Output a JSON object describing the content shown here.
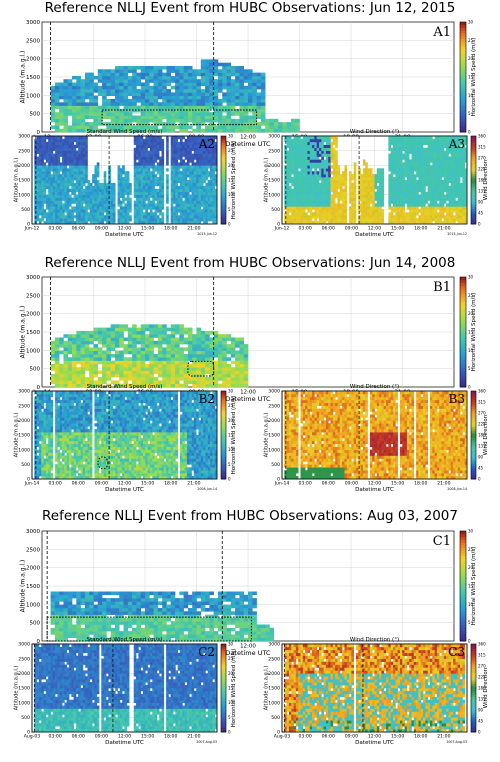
{
  "rows": [
    {
      "title": "Reference NLLJ Event from HUBC Observations: Jun 12, 2015",
      "top": {
        "label": "A1",
        "xlabel": "Datetime UTC",
        "ylabel": "Altitude (m.a.g.l.)",
        "date_stamp": "2015-Jun-12"
      },
      "left": {
        "label": "A2",
        "title": "Standard Wind Speed (m/s)",
        "xlabel": "Datetime UTC",
        "ylabel": "Altitude (m.a.g.l.)",
        "date_stamp": "2015-Jun-12"
      },
      "right": {
        "label": "A3",
        "title": "Wind Direction (°)",
        "xlabel": "Datetime UTC",
        "date_stamp": "2015-Jun-12"
      }
    },
    {
      "title": "Reference NLLJ Event from HUBC Observations: Jun 14, 2008",
      "top": {
        "label": "B1",
        "xlabel": "Datetime UTC",
        "ylabel": "Altitude (m.a.g.l.)",
        "date_stamp": "2008-Jun-14"
      },
      "left": {
        "label": "B2",
        "title": "Standard Wind Speed (m/s)",
        "xlabel": "Datetime UTC",
        "ylabel": "Altitude (m.a.g.l.)",
        "date_stamp": "2008-Jun-14"
      },
      "right": {
        "label": "B3",
        "title": "Wind Direction (°)",
        "xlabel": "Datetime UTC",
        "date_stamp": "2008-Jun-14"
      }
    },
    {
      "title": "Reference NLLJ Event from HUBC Observations: Aug 03, 2007",
      "top": {
        "label": "C1",
        "xlabel": "Datetime UTC",
        "ylabel": "Altitude (m.a.g.l.)",
        "date_stamp": "2007-Aug-03"
      },
      "left": {
        "label": "C2",
        "title": "Standard Wind Speed (m/s)",
        "xlabel": "Datetime UTC",
        "ylabel": "Altitude (m.a.g.l.)",
        "date_stamp": "2007-Aug-03"
      },
      "right": {
        "label": "C3",
        "title": "Wind Direction (°)",
        "xlabel": "Datetime UTC",
        "date_stamp": "2007-Aug-03"
      }
    }
  ],
  "colorbars": {
    "horizontal_speed": {
      "label": "Horizontal Wind Speed (m/s)",
      "ticks": [
        "0",
        "5",
        "10",
        "15",
        "20",
        "25",
        "30"
      ]
    },
    "std_speed": {
      "label": "Horizontal Wind Speed (m/s)",
      "ticks": [
        "0",
        "5",
        "10",
        "15",
        "20",
        "25",
        "30"
      ]
    },
    "direction": {
      "label": "Wind Direction",
      "ticks": [
        "0",
        "45",
        "90",
        "135",
        "180",
        "225",
        "270",
        "315",
        "360"
      ]
    }
  },
  "chart_data": [
    {
      "type": "heatmap",
      "panel": "A1",
      "x_ticks_top": [
        "Jun-12",
        "03:00",
        "06:00",
        "09:00",
        "12:00",
        "15:00",
        "18:00",
        "21:00"
      ],
      "x_ticks_small": [
        "Jun-12",
        "03:00",
        "06:00",
        "09:00",
        "12:00",
        "15:00",
        "18:00",
        "21:00"
      ],
      "y_ticks": [
        "0",
        "500",
        "1000",
        "1500",
        "2000",
        "2500",
        "3000"
      ],
      "ylim": [
        0,
        3000
      ],
      "xlim_hours": [
        0,
        24
      ],
      "nllj_window_hours": [
        0.5,
        10
      ],
      "jet_box": {
        "x_hours": [
          3.5,
          12.5
        ],
        "alt_m": [
          200,
          600
        ]
      }
    },
    {
      "type": "heatmap",
      "panel": "B1",
      "x_ticks_top": [
        "Jun-14",
        "03:00",
        "06:00",
        "09:00",
        "12:00",
        "15:00",
        "18:00",
        "21:00"
      ],
      "x_ticks_small": [
        "Jun-14",
        "03:00",
        "06:00",
        "09:00",
        "12:00",
        "15:00",
        "18:00",
        "21:00"
      ],
      "y_ticks": [
        "0",
        "500",
        "1000",
        "1500",
        "2000",
        "2500",
        "3000"
      ],
      "ylim": [
        0,
        3000
      ],
      "xlim_hours": [
        0,
        24
      ],
      "nllj_window_hours": [
        0.5,
        10
      ],
      "jet_box": {
        "x_hours": [
          8.5,
          10
        ],
        "alt_m": [
          300,
          700
        ]
      }
    },
    {
      "type": "heatmap",
      "panel": "C1",
      "x_ticks_top": [
        "Aug-03",
        "03:00",
        "06:00",
        "09:00",
        "12:00",
        "15:00",
        "18:00",
        "21:00"
      ],
      "x_ticks_small": [
        "Aug-03",
        "03:00",
        "06:00",
        "09:00",
        "12:00",
        "15:00",
        "18:00",
        "21:00"
      ],
      "y_ticks": [
        "0",
        "500",
        "1000",
        "1500",
        "2000",
        "2500",
        "3000"
      ],
      "ylim": [
        0,
        3000
      ],
      "xlim_hours": [
        0,
        24
      ],
      "nllj_window_hours": [
        0.3,
        10.5
      ],
      "jet_box": {
        "x_hours": [
          0.3,
          12.2
        ],
        "alt_m": [
          0,
          650
        ]
      }
    }
  ],
  "colors": {
    "low": "#3b4cc0",
    "mid": "#4fc3c8",
    "high": "#f6d02b",
    "dir_green": "#3fae3f",
    "dir_orange": "#f39a1d"
  }
}
